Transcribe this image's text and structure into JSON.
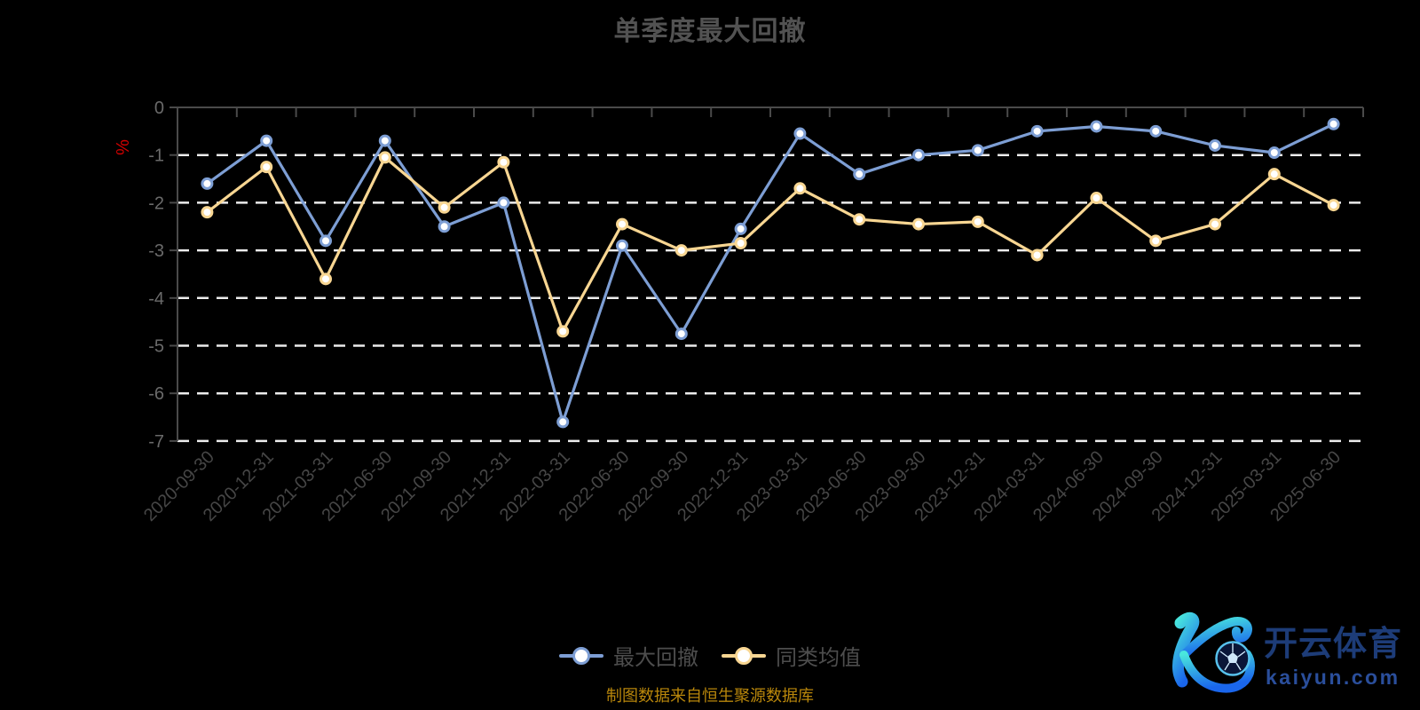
{
  "title": "单季度最大回撤",
  "subtitle": "制图数据来自恒生聚源数据库",
  "y_axis": {
    "tick_labels": [
      "0",
      "-1",
      "-2",
      "-3",
      "-4",
      "-5",
      "-6",
      "-7"
    ]
  },
  "colors": {
    "series_drawdown": "#7d9ed4",
    "series_peer_avg": "#f8d692",
    "percent_label": "#d40000",
    "subtitle_text": "#b8860b",
    "gridline": "#ececec",
    "axis_line": "#4a4a4a",
    "watermark_dark_blue": "#1d3c78",
    "watermark_blue": "#2a4e9b"
  },
  "watermark": {
    "brand": "开云体育",
    "domain": "kaiyun.com"
  },
  "chart_data": {
    "type": "line",
    "categories": [
      "2020-09-30",
      "2020-12-31",
      "2021-03-31",
      "2021-06-30",
      "2021-09-30",
      "2021-12-31",
      "2022-03-31",
      "2022-06-30",
      "2022-09-30",
      "2022-12-31",
      "2023-03-31",
      "2023-06-30",
      "2023-09-30",
      "2023-12-31",
      "2024-03-31",
      "2024-06-30",
      "2024-09-30",
      "2024-12-31",
      "2025-03-31",
      "2025-06-30"
    ],
    "series": [
      {
        "name": "最大回撤",
        "color": "#7d9ed4",
        "values": [
          -1.6,
          -0.7,
          -2.8,
          -0.7,
          -2.5,
          -2.0,
          -6.6,
          -2.9,
          -4.75,
          -2.55,
          -0.55,
          -1.4,
          -1.0,
          -0.9,
          -0.5,
          -0.4,
          -0.5,
          -0.8,
          -0.95,
          -0.35
        ]
      },
      {
        "name": "同类均值",
        "color": "#f8d692",
        "values": [
          -2.2,
          -1.25,
          -3.6,
          -1.05,
          -2.1,
          -1.15,
          -4.7,
          -2.45,
          -3.0,
          -2.85,
          -1.7,
          -2.35,
          -2.45,
          -2.4,
          -3.1,
          -1.9,
          -2.8,
          -2.45,
          -1.4,
          -2.05
        ]
      }
    ],
    "title": "单季度最大回撤",
    "xlabel": "",
    "ylabel": "%",
    "ylim": [
      -7,
      0
    ],
    "y_ticks": [
      0,
      -1,
      -2,
      -3,
      -4,
      -5,
      -6,
      -7
    ],
    "grid": "horizontal-dashed",
    "legend_position": "bottom",
    "x_label_rotation": 45
  }
}
